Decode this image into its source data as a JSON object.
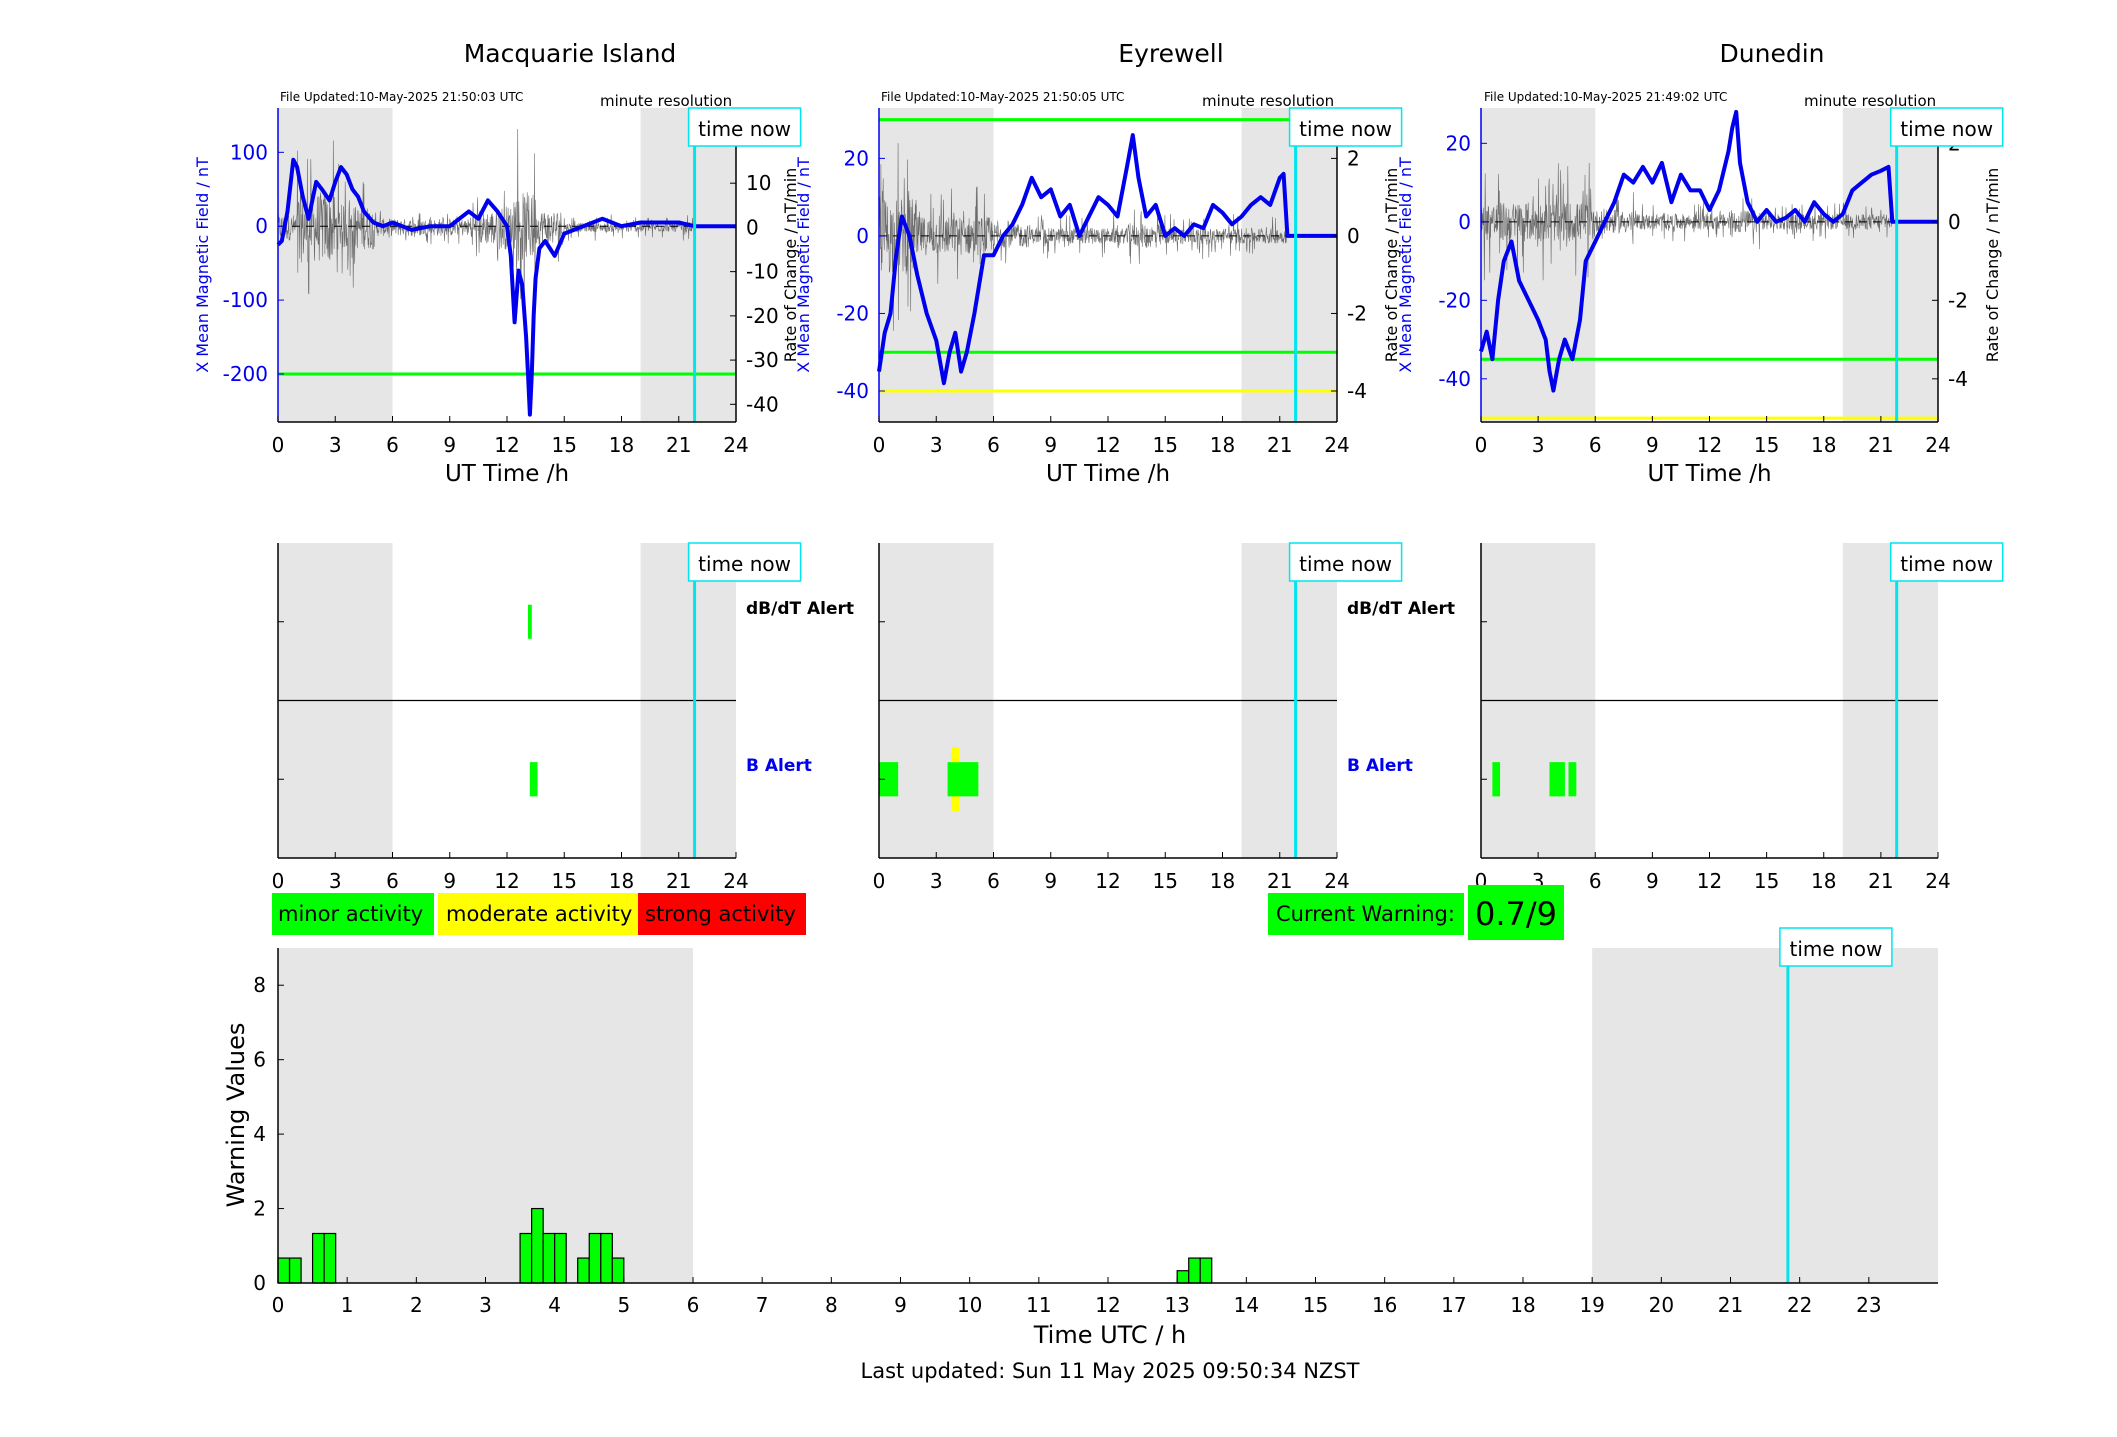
{
  "stations": [
    {
      "title": "Macquarie Island",
      "file_updated": "File Updated:10-May-2025 21:50:03 UTC",
      "resolution": "minute resolution"
    },
    {
      "title": "Eyrewell",
      "file_updated": "File Updated:10-May-2025 21:50:05 UTC",
      "resolution": "minute resolution"
    },
    {
      "title": "Dunedin",
      "file_updated": "File Updated:10-May-2025 21:49:02 UTC",
      "resolution": "minute resolution"
    }
  ],
  "time_now_label": "time now",
  "labels": {
    "ut_time": "UT Time /h",
    "left_axis": "X Mean Magnetic Field / nT",
    "right_axis": "Rate of Change / nT/min",
    "dbdt_alert": "dB/dT Alert",
    "b_alert": "B Alert",
    "warning_ylabel": "Warning Values",
    "warning_xlabel": "Time UTC / h",
    "last_updated": "Last updated: Sun 11 May 2025 09:50:34 NZST"
  },
  "legend": {
    "minor": "minor activity",
    "moderate": "moderate activity",
    "strong": "strong activity"
  },
  "current_warning": {
    "label": "Current Warning:",
    "value": "0.7/9"
  },
  "colors": {
    "minor": "#00ff00",
    "moderate": "#ffff00",
    "strong": "#ff0000",
    "time_now": "#00e5ee",
    "field": "#0000ee",
    "shade": "#e6e6e6"
  },
  "chart_data": [
    {
      "type": "line",
      "title": "Macquarie Island",
      "xlabel": "UT Time /h",
      "ylabel": "X Mean Magnetic Field / nT",
      "y2label": "Rate of Change / nT/min",
      "xlim": [
        0,
        24
      ],
      "xticks": [
        0,
        3,
        6,
        9,
        12,
        15,
        18,
        21,
        24
      ],
      "ylim": [
        -265,
        160
      ],
      "yticks": [
        100,
        0,
        -100,
        -200
      ],
      "y2lim": [
        -44,
        27
      ],
      "y2ticks": [
        20,
        10,
        0,
        -10,
        -20,
        -30,
        -40
      ],
      "time_now": 21.83,
      "shaded_hours": [
        [
          0,
          6
        ],
        [
          19,
          24
        ]
      ],
      "thresholds": [
        {
          "value": -200,
          "level": "minor"
        }
      ],
      "series": [
        {
          "x": [
            0,
            0.2,
            0.5,
            0.8,
            1.0,
            1.3,
            1.6,
            2.0,
            2.3,
            2.7,
            3.0,
            3.3,
            3.6,
            3.9,
            4.2,
            4.5,
            5.0,
            5.5,
            6.0,
            7,
            8,
            9,
            9.5,
            10,
            10.5,
            11,
            11.5,
            12.0,
            12.2,
            12.4,
            12.6,
            12.8,
            13.0,
            13.1,
            13.2,
            13.3,
            13.4,
            13.5,
            13.7,
            14.0,
            14.5,
            15,
            16,
            17,
            18,
            19,
            20,
            21,
            21.83,
            24
          ],
          "y": [
            -25,
            -20,
            20,
            90,
            80,
            40,
            10,
            60,
            50,
            35,
            60,
            80,
            70,
            50,
            40,
            20,
            5,
            0,
            5,
            -5,
            0,
            0,
            10,
            20,
            10,
            35,
            20,
            0,
            -40,
            -130,
            -60,
            -80,
            -150,
            -200,
            -255,
            -200,
            -120,
            -70,
            -30,
            -20,
            -40,
            -10,
            0,
            10,
            0,
            5,
            5,
            5,
            0,
            0
          ]
        }
      ],
      "rate_envelope": [
        [
          0,
          1,
          3,
          5
        ],
        [
          1,
          3,
          8,
          20
        ],
        [
          3,
          5,
          5,
          15
        ],
        [
          5,
          6,
          2,
          6
        ],
        [
          6,
          10,
          2,
          4
        ],
        [
          10,
          11.5,
          4,
          8
        ],
        [
          11.5,
          12.5,
          5,
          10
        ],
        [
          12.5,
          13.5,
          8,
          25
        ],
        [
          13.5,
          15,
          4,
          8
        ],
        [
          15,
          21.83,
          1,
          3
        ]
      ]
    },
    {
      "type": "line",
      "title": "Eyrewell",
      "xlabel": "UT Time /h",
      "ylabel": "X Mean Magnetic Field / nT",
      "y2label": "Rate of Change / nT/min",
      "xlim": [
        0,
        24
      ],
      "xticks": [
        0,
        3,
        6,
        9,
        12,
        15,
        18,
        21,
        24
      ],
      "ylim": [
        -48,
        33
      ],
      "yticks": [
        20,
        0,
        -20,
        -40
      ],
      "y2lim": [
        -4.8,
        3.3
      ],
      "y2ticks": [
        2,
        0,
        -2,
        -4
      ],
      "time_now": 21.83,
      "shaded_hours": [
        [
          0,
          6
        ],
        [
          19,
          24
        ]
      ],
      "thresholds": [
        {
          "value": 30,
          "level": "minor"
        },
        {
          "value": -30,
          "level": "minor"
        },
        {
          "value": -40,
          "level": "moderate"
        }
      ],
      "series": [
        {
          "x": [
            0,
            0.3,
            0.6,
            0.9,
            1.2,
            1.6,
            2.0,
            2.5,
            3.0,
            3.4,
            3.7,
            4.0,
            4.3,
            4.6,
            5.0,
            5.5,
            6.0,
            6.5,
            7.0,
            7.5,
            8.0,
            8.5,
            9,
            9.5,
            10,
            10.5,
            11,
            11.5,
            12,
            12.5,
            13,
            13.3,
            13.6,
            14,
            14.5,
            15,
            15.5,
            16,
            16.5,
            17,
            17.5,
            18,
            18.5,
            19,
            19.5,
            20,
            20.5,
            21,
            21.2,
            21.4,
            24
          ],
          "y": [
            -35,
            -25,
            -20,
            -5,
            5,
            0,
            -10,
            -20,
            -27,
            -38,
            -30,
            -25,
            -35,
            -30,
            -20,
            -5,
            -5,
            0,
            3,
            8,
            15,
            10,
            12,
            5,
            8,
            0,
            5,
            10,
            8,
            5,
            18,
            26,
            15,
            5,
            8,
            0,
            2,
            0,
            3,
            2,
            8,
            6,
            3,
            5,
            8,
            10,
            8,
            15,
            16,
            0,
            0
          ]
        }
      ],
      "rate_envelope": [
        [
          0,
          2,
          1,
          2.5
        ],
        [
          2,
          6,
          0.5,
          1.5
        ],
        [
          6,
          8,
          0.3,
          0.8
        ],
        [
          8,
          13,
          0.2,
          0.6
        ],
        [
          13,
          15,
          0.3,
          0.8
        ],
        [
          15,
          21.4,
          0.2,
          0.6
        ]
      ]
    },
    {
      "type": "line",
      "title": "Dunedin",
      "xlabel": "UT Time /h",
      "ylabel": "X Mean Magnetic Field / nT",
      "y2label": "Rate of Change / nT/min",
      "xlim": [
        0,
        24
      ],
      "xticks": [
        0,
        3,
        6,
        9,
        12,
        15,
        18,
        21,
        24
      ],
      "ylim": [
        -51,
        29
      ],
      "yticks": [
        20,
        0,
        -20,
        -40
      ],
      "y2lim": [
        -5.1,
        2.9
      ],
      "y2ticks": [
        2,
        0,
        -2,
        -4
      ],
      "time_now": 21.83,
      "shaded_hours": [
        [
          0,
          6
        ],
        [
          19,
          24
        ]
      ],
      "thresholds": [
        {
          "value": -35,
          "level": "minor"
        },
        {
          "value": -50,
          "level": "moderate"
        }
      ],
      "series": [
        {
          "x": [
            0,
            0.3,
            0.6,
            0.9,
            1.2,
            1.6,
            2.0,
            2.5,
            3.0,
            3.4,
            3.6,
            3.8,
            4.1,
            4.4,
            4.8,
            5.2,
            5.5,
            6.0,
            6.5,
            7.0,
            7.5,
            8,
            8.5,
            9,
            9.5,
            10,
            10.5,
            11,
            11.5,
            12,
            12.5,
            13,
            13.2,
            13.4,
            13.6,
            14,
            14.5,
            15,
            15.5,
            16,
            16.5,
            17,
            17.5,
            18,
            18.5,
            19,
            19.5,
            20,
            20.5,
            21,
            21.4,
            21.6,
            24
          ],
          "y": [
            -33,
            -28,
            -35,
            -20,
            -10,
            -5,
            -15,
            -20,
            -25,
            -30,
            -38,
            -43,
            -35,
            -30,
            -35,
            -25,
            -10,
            -5,
            0,
            5,
            12,
            10,
            14,
            10,
            15,
            5,
            12,
            8,
            8,
            3,
            8,
            18,
            24,
            28,
            15,
            5,
            0,
            3,
            0,
            1,
            3,
            0,
            5,
            2,
            0,
            2,
            8,
            10,
            12,
            13,
            14,
            0,
            0
          ]
        }
      ],
      "rate_envelope": [
        [
          0,
          6,
          0.5,
          1.5
        ],
        [
          6,
          8,
          0.3,
          0.8
        ],
        [
          8,
          13,
          0.2,
          0.5
        ],
        [
          13,
          15,
          0.3,
          0.7
        ],
        [
          15,
          21.6,
          0.2,
          0.5
        ]
      ]
    }
  ],
  "alerts": [
    {
      "dbdt": [
        {
          "x0": 13.1,
          "x1": 13.3,
          "level": "minor"
        }
      ],
      "b": [
        {
          "x0": 13.2,
          "x1": 13.6,
          "level": "minor"
        }
      ]
    },
    {
      "dbdt": [],
      "b": [
        {
          "x0": 0,
          "x1": 1.0,
          "level": "minor"
        },
        {
          "x0": 3.6,
          "x1": 5.2,
          "level": "minor"
        },
        {
          "x0": 3.8,
          "x1": 4.2,
          "level": "moderate"
        }
      ]
    },
    {
      "dbdt": [],
      "b": [
        {
          "x0": 0.6,
          "x1": 1.0,
          "level": "minor"
        },
        {
          "x0": 3.6,
          "x1": 4.4,
          "level": "minor"
        },
        {
          "x0": 4.6,
          "x1": 5.0,
          "level": "minor"
        }
      ]
    }
  ],
  "warning_chart": {
    "type": "bar",
    "xlim": [
      0,
      24
    ],
    "ylim": [
      0,
      9
    ],
    "xticks": [
      0,
      1,
      2,
      3,
      4,
      5,
      6,
      7,
      8,
      9,
      10,
      11,
      12,
      13,
      14,
      15,
      16,
      17,
      18,
      19,
      20,
      21,
      22,
      23
    ],
    "yticks": [
      0,
      2,
      4,
      6,
      8
    ],
    "time_now": 21.83,
    "shaded_hours": [
      [
        0,
        6
      ],
      [
        19,
        24
      ]
    ],
    "bar_width": 0.1667,
    "bars": [
      {
        "x": 0.0,
        "v": 0.67
      },
      {
        "x": 0.167,
        "v": 0.67
      },
      {
        "x": 0.5,
        "v": 1.33
      },
      {
        "x": 0.667,
        "v": 1.33
      },
      {
        "x": 3.5,
        "v": 1.33
      },
      {
        "x": 3.667,
        "v": 2.0
      },
      {
        "x": 3.833,
        "v": 1.33
      },
      {
        "x": 4.0,
        "v": 1.33
      },
      {
        "x": 4.333,
        "v": 0.67
      },
      {
        "x": 4.5,
        "v": 1.33
      },
      {
        "x": 4.667,
        "v": 1.33
      },
      {
        "x": 4.833,
        "v": 0.67
      },
      {
        "x": 13.0,
        "v": 0.33
      },
      {
        "x": 13.167,
        "v": 0.67
      },
      {
        "x": 13.333,
        "v": 0.67
      }
    ]
  }
}
